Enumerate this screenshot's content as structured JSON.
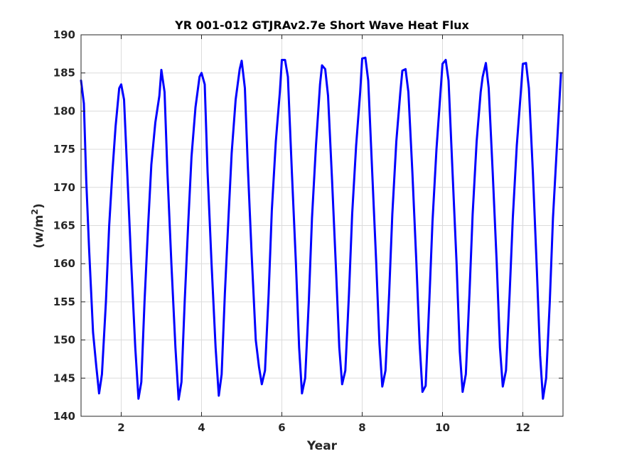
{
  "chart_data": {
    "type": "line",
    "title": "YR 001-012 GTJRAv2.7e Short Wave Heat Flux",
    "xlabel": "Year",
    "ylabel_main": "(w/m",
    "ylabel_sup": "2",
    "ylabel_end": ")",
    "xlim": [
      1,
      13
    ],
    "ylim": [
      140,
      190
    ],
    "xticks": [
      2,
      4,
      6,
      8,
      10,
      12
    ],
    "xtick_labels": [
      "2",
      "4",
      "6",
      "8",
      "10",
      "12"
    ],
    "yticks": [
      140,
      145,
      150,
      155,
      160,
      165,
      170,
      175,
      180,
      185,
      190
    ],
    "ytick_labels": [
      "140",
      "145",
      "150",
      "155",
      "160",
      "165",
      "170",
      "175",
      "180",
      "185",
      "190"
    ],
    "grid": true,
    "line_color": "#0000ff",
    "series": [
      {
        "x": [
          1.0,
          1.07,
          1.13,
          1.2,
          1.3,
          1.38,
          1.45,
          1.52,
          1.62,
          1.7,
          1.78,
          1.86,
          1.95,
          2.0,
          2.07,
          2.15,
          2.25,
          2.35,
          2.43,
          2.5,
          2.58,
          2.67,
          2.75,
          2.85,
          2.95,
          3.0,
          3.08,
          3.15,
          3.25,
          3.35,
          3.43,
          3.5,
          3.58,
          3.67,
          3.75,
          3.85,
          3.95,
          4.0,
          4.08,
          4.15,
          4.25,
          4.35,
          4.43,
          4.5,
          4.58,
          4.67,
          4.75,
          4.85,
          4.95,
          5.0,
          5.08,
          5.15,
          5.25,
          5.35,
          5.43,
          5.5,
          5.58,
          5.67,
          5.75,
          5.85,
          5.95,
          6.0,
          6.08,
          6.15,
          6.25,
          6.35,
          6.43,
          6.5,
          6.58,
          6.67,
          6.75,
          6.85,
          6.95,
          7.0,
          7.08,
          7.15,
          7.25,
          7.35,
          7.43,
          7.5,
          7.58,
          7.67,
          7.75,
          7.85,
          7.95,
          8.0,
          8.08,
          8.15,
          8.25,
          8.35,
          8.43,
          8.5,
          8.58,
          8.67,
          8.75,
          8.85,
          8.95,
          9.0,
          9.08,
          9.15,
          9.25,
          9.35,
          9.43,
          9.5,
          9.58,
          9.67,
          9.75,
          9.85,
          9.95,
          10.0,
          10.08,
          10.15,
          10.25,
          10.35,
          10.43,
          10.5,
          10.58,
          10.67,
          10.75,
          10.85,
          10.95,
          11.0,
          11.08,
          11.15,
          11.25,
          11.35,
          11.43,
          11.5,
          11.58,
          11.67,
          11.75,
          11.85,
          11.95,
          12.0,
          12.08,
          12.15,
          12.25,
          12.35,
          12.43,
          12.5,
          12.58,
          12.67,
          12.75,
          12.85,
          12.95
        ],
        "y": [
          184.0,
          181.0,
          171.0,
          162.0,
          151.0,
          146.5,
          143.0,
          145.5,
          155.0,
          165.0,
          172.0,
          178.0,
          183.0,
          183.5,
          181.5,
          172.0,
          160.0,
          149.0,
          142.3,
          144.5,
          155.0,
          165.0,
          173.0,
          178.5,
          182.0,
          185.4,
          182.5,
          172.0,
          160.0,
          149.0,
          142.2,
          144.5,
          155.0,
          165.5,
          174.0,
          180.5,
          184.5,
          185.0,
          183.5,
          172.0,
          160.0,
          149.0,
          142.7,
          145.5,
          156.0,
          166.0,
          174.5,
          181.5,
          185.5,
          186.6,
          183.0,
          173.0,
          161.0,
          150.0,
          146.5,
          144.2,
          146.0,
          156.0,
          167.0,
          176.0,
          182.5,
          186.7,
          186.7,
          184.5,
          172.0,
          160.0,
          149.0,
          143.0,
          145.0,
          155.0,
          166.0,
          175.5,
          183.5,
          186.0,
          185.5,
          182.0,
          171.0,
          159.0,
          149.0,
          144.2,
          146.0,
          156.0,
          166.5,
          175.5,
          182.5,
          186.9,
          187.0,
          184.0,
          172.0,
          160.0,
          149.5,
          143.9,
          146.0,
          156.0,
          166.5,
          176.0,
          182.5,
          185.3,
          185.5,
          182.5,
          172.0,
          160.0,
          149.5,
          143.2,
          144.0,
          155.0,
          165.5,
          175.0,
          182.5,
          186.2,
          186.7,
          184.0,
          172.0,
          160.0,
          148.5,
          143.2,
          145.5,
          156.0,
          166.5,
          176.0,
          182.5,
          184.5,
          186.3,
          183.0,
          172.0,
          160.0,
          149.0,
          143.9,
          146.0,
          156.0,
          166.0,
          175.5,
          182.5,
          186.2,
          186.3,
          183.0,
          172.0,
          159.0,
          148.0,
          142.3,
          145.0,
          155.0,
          166.0,
          175.5,
          185.0
        ]
      }
    ]
  }
}
